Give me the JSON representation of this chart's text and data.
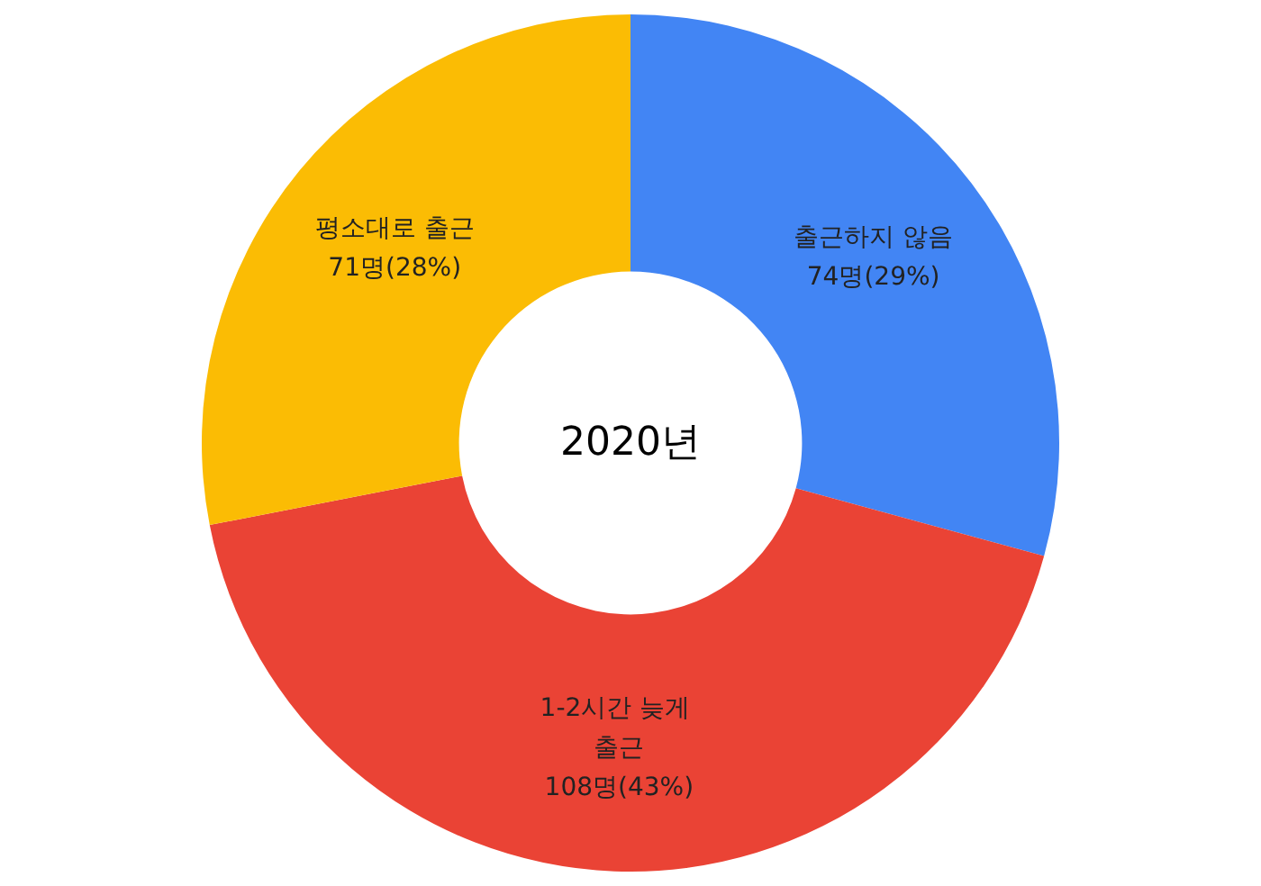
{
  "chart_data": {
    "type": "donut",
    "title": "2020년",
    "categories": [
      "출근하지 않음",
      "1-2시간 늦게 출근",
      "평소대로 출근"
    ],
    "values": [
      74,
      108,
      71
    ],
    "value_labels": [
      "74명(29%)",
      "108명(43%)",
      "71명(28%)"
    ],
    "colors": [
      "#4285f4",
      "#ea4335",
      "#fbbc04"
    ]
  }
}
